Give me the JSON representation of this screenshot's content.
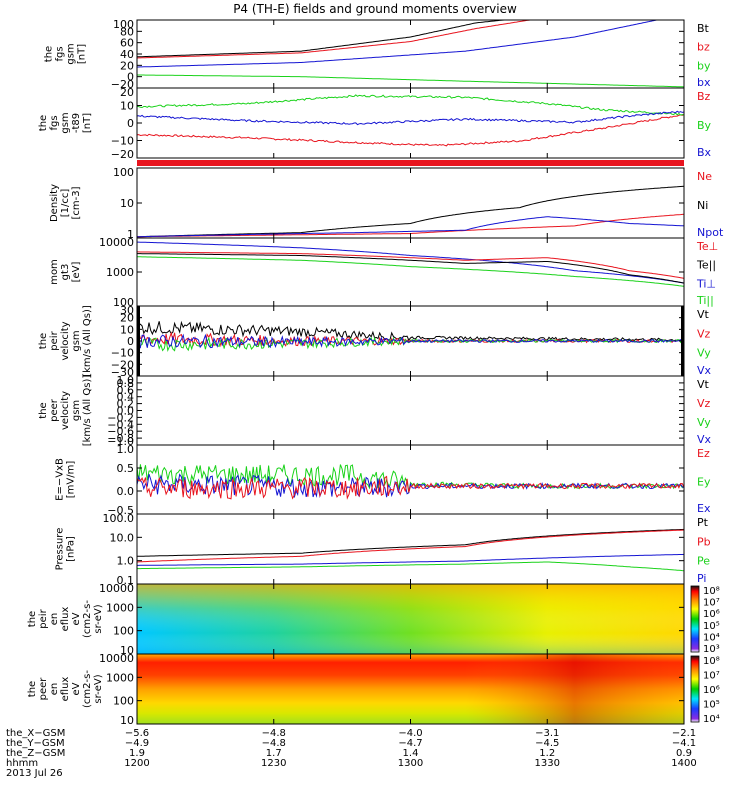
{
  "title": "P4 (TH-E) fields and ground moments overview",
  "colors": {
    "black": "#000000",
    "red": "#e8141e",
    "green": "#1ad21a",
    "blue": "#1414d2"
  },
  "chart_data": [
    {
      "type": "line",
      "ylabel": [
        "the",
        "fgs",
        "gsm",
        "[nT]"
      ],
      "yticks": [
        "100",
        "80",
        "60",
        "40",
        "20",
        "0",
        "−20"
      ],
      "ylim": [
        -20,
        100
      ],
      "legend": [
        {
          "name": "Bt",
          "color": "black"
        },
        {
          "name": "bz",
          "color": "red"
        },
        {
          "name": "by",
          "color": "green"
        },
        {
          "name": "bx",
          "color": "blue"
        }
      ],
      "series": [
        {
          "name": "Bt",
          "x": [
            0,
            0.3,
            0.5,
            0.62,
            0.72
          ],
          "y": [
            35,
            45,
            70,
            95,
            105
          ]
        },
        {
          "name": "bz",
          "x": [
            0,
            0.3,
            0.5,
            0.62,
            0.75
          ],
          "y": [
            33,
            42,
            62,
            85,
            105
          ]
        },
        {
          "name": "by",
          "x": [
            0,
            0.3,
            0.6,
            1
          ],
          "y": [
            3,
            0,
            -8,
            -18
          ]
        },
        {
          "name": "bx",
          "x": [
            0,
            0.3,
            0.6,
            0.8,
            1
          ],
          "y": [
            17,
            25,
            45,
            70,
            110
          ]
        }
      ]
    },
    {
      "type": "line",
      "ylabel": [
        "the",
        "fgs",
        "gsm",
        "-t89",
        "[nT]"
      ],
      "yticks": [
        "20",
        "10",
        "0",
        "−10",
        "−20"
      ],
      "ylim": [
        -25,
        20
      ],
      "legend": [
        {
          "name": "Bz",
          "color": "red"
        },
        {
          "name": "By",
          "color": "green"
        },
        {
          "name": "Bx",
          "color": "blue"
        }
      ],
      "series": [
        {
          "name": "Bz",
          "x": [
            0,
            0.2,
            0.4,
            0.55,
            0.7,
            0.85,
            1
          ],
          "y": [
            -10,
            -12,
            -15,
            -17,
            -14,
            -6,
            3
          ]
        },
        {
          "name": "By",
          "x": [
            0,
            0.2,
            0.4,
            0.6,
            0.75,
            0.85,
            1
          ],
          "y": [
            8,
            10,
            15,
            14,
            10,
            6,
            3
          ]
        },
        {
          "name": "Bx",
          "x": [
            0,
            0.2,
            0.4,
            0.6,
            0.8,
            0.9,
            1
          ],
          "y": [
            2,
            -1,
            -3,
            0,
            -2,
            2,
            5
          ]
        }
      ]
    },
    {
      "type": "line",
      "ylabel": [
        "Density",
        "[1/cc]",
        "[cm-3]"
      ],
      "yticks": [
        "100",
        "10",
        "1"
      ],
      "yscale": "log",
      "ylim": [
        1,
        200
      ],
      "legend": [
        {
          "name": "Ne",
          "color": "red"
        },
        {
          "name": "Ni",
          "color": "black"
        },
        {
          "name": "Npot",
          "color": "blue"
        }
      ],
      "series": [
        {
          "name": "Ni",
          "x": [
            0,
            0.3,
            0.5,
            0.7,
            1
          ],
          "y": [
            1.1,
            1.5,
            3,
            10,
            50
          ]
        },
        {
          "name": "Ne",
          "x": [
            0,
            0.5,
            0.8,
            1
          ],
          "y": [
            1.1,
            1.4,
            2.5,
            6
          ]
        },
        {
          "name": "Npot",
          "x": [
            0,
            0.4,
            0.6,
            0.75,
            0.9,
            1
          ],
          "y": [
            1.1,
            1.5,
            1.8,
            5,
            3,
            2.5
          ]
        }
      ]
    },
    {
      "type": "line",
      "ylabel": [
        "mom",
        "gt3",
        "[eV]"
      ],
      "yticks": [
        "10000",
        "1000",
        "100"
      ],
      "yscale": "log",
      "ylim": [
        100,
        12000
      ],
      "legend": [
        {
          "name": "Te⊥",
          "color": "red"
        },
        {
          "name": "Te||",
          "color": "black"
        },
        {
          "name": "Ti⊥",
          "color": "blue"
        },
        {
          "name": "Ti||",
          "color": "green"
        }
      ],
      "series": [
        {
          "name": "Ti⊥",
          "x": [
            0,
            0.3,
            0.5,
            0.8,
            1
          ],
          "y": [
            9000,
            6000,
            3500,
            1200,
            500
          ]
        },
        {
          "name": "Te⊥",
          "x": [
            0,
            0.3,
            0.6,
            0.75,
            0.9,
            1
          ],
          "y": [
            4500,
            4000,
            2500,
            3000,
            1200,
            700
          ]
        },
        {
          "name": "Te||",
          "x": [
            0,
            0.3,
            0.6,
            0.75,
            0.9,
            1
          ],
          "y": [
            4000,
            3500,
            2000,
            2300,
            900,
            500
          ]
        },
        {
          "name": "Ti||",
          "x": [
            0,
            0.3,
            0.5,
            0.8,
            1
          ],
          "y": [
            3200,
            2500,
            1600,
            800,
            400
          ]
        }
      ]
    },
    {
      "type": "line",
      "ylabel": [
        "the",
        "peir",
        "velocity",
        "gsm",
        "[km/s (All Qs)]"
      ],
      "yticks": [
        "30",
        "20",
        "10",
        "0",
        "−10",
        "−20",
        "−30"
      ],
      "ylim": [
        -30,
        30
      ],
      "legend": [
        {
          "name": "Vt",
          "color": "black"
        },
        {
          "name": "Vz",
          "color": "red"
        },
        {
          "name": "Vy",
          "color": "green"
        },
        {
          "name": "Vx",
          "color": "blue"
        }
      ],
      "series": [
        {
          "name": "Vt",
          "x": [
            0,
            0.3,
            0.5,
            1
          ],
          "y": [
            12,
            8,
            3,
            1
          ]
        },
        {
          "name": "Vz",
          "x": [
            0,
            0.3,
            0.5,
            1
          ],
          "y": [
            2,
            0,
            0,
            0
          ]
        },
        {
          "name": "Vy",
          "x": [
            0,
            0.3,
            0.5,
            1
          ],
          "y": [
            -3,
            -2,
            0,
            0
          ]
        },
        {
          "name": "Vx",
          "x": [
            0,
            0.3,
            0.5,
            1
          ],
          "y": [
            0,
            -1,
            0,
            0
          ]
        }
      ]
    },
    {
      "type": "line",
      "ylabel": [
        "the",
        "peer",
        "velocity",
        "gsm",
        "[km/s (All Qs)]"
      ],
      "yticks": [
        "1.0",
        "0.8",
        "0.6",
        "0.4",
        "0.2",
        "0.0",
        "−0.2",
        "−0.4",
        "−0.6",
        "−0.8",
        "−1.0"
      ],
      "ylim": [
        -1,
        1
      ],
      "legend": [
        {
          "name": "Vt",
          "color": "black"
        },
        {
          "name": "Vz",
          "color": "red"
        },
        {
          "name": "Vy",
          "color": "green"
        },
        {
          "name": "Vx",
          "color": "blue"
        }
      ],
      "series": []
    },
    {
      "type": "line",
      "ylabel": [
        "E=−VxB",
        "[mV/m]"
      ],
      "yticks": [
        "1.0",
        "0.5",
        "0.0",
        "−0.5"
      ],
      "ylim": [
        -0.6,
        1
      ],
      "legend": [
        {
          "name": "Ez",
          "color": "red"
        },
        {
          "name": "Ey",
          "color": "green"
        },
        {
          "name": "Ex",
          "color": "blue"
        }
      ],
      "series": [
        {
          "name": "Ey",
          "x": [
            0,
            0.2,
            0.4,
            0.5,
            0.7,
            1
          ],
          "y": [
            0.35,
            0.3,
            0.3,
            0.1,
            0.05,
            0.05
          ]
        },
        {
          "name": "Ex",
          "x": [
            0,
            0.2,
            0.4,
            0.5,
            0.7,
            1
          ],
          "y": [
            0.1,
            0.05,
            0,
            0.05,
            0.05,
            0.05
          ]
        },
        {
          "name": "Ez",
          "x": [
            0,
            0.2,
            0.4,
            0.5,
            0.7,
            1
          ],
          "y": [
            0,
            0,
            0,
            0.05,
            0.05,
            0.05
          ]
        }
      ]
    },
    {
      "type": "line",
      "ylabel": [
        "Pressure",
        "[nPa]"
      ],
      "yticks": [
        "100.0",
        "10.0",
        "1.0",
        "0.1"
      ],
      "yscale": "log",
      "ylim": [
        0.1,
        150
      ],
      "legend": [
        {
          "name": "Pt",
          "color": "black"
        },
        {
          "name": "Pb",
          "color": "red"
        },
        {
          "name": "Pe",
          "color": "green"
        },
        {
          "name": "Pi",
          "color": "blue"
        }
      ],
      "series": [
        {
          "name": "Pt",
          "x": [
            0,
            0.3,
            0.6,
            1
          ],
          "y": [
            1.8,
            2.5,
            6,
            30
          ]
        },
        {
          "name": "Pb",
          "x": [
            0,
            0.3,
            0.6,
            1
          ],
          "y": [
            1.0,
            1.8,
            5,
            28
          ]
        },
        {
          "name": "Pi",
          "x": [
            0,
            0.3,
            0.6,
            1
          ],
          "y": [
            0.7,
            0.8,
            1.1,
            2.2
          ]
        },
        {
          "name": "Pe",
          "x": [
            0,
            0.3,
            0.6,
            0.75,
            0.9,
            1
          ],
          "y": [
            0.5,
            0.6,
            0.8,
            1.0,
            0.6,
            0.4
          ]
        }
      ]
    },
    {
      "type": "heatmap",
      "ylabel": [
        "the",
        "peir",
        "en",
        "eflux",
        "eV",
        "(cm2-s-",
        "sr-eV)"
      ],
      "yticks": [
        "10000",
        "1000",
        "100",
        "10"
      ],
      "yscale": "log",
      "colorbar_ticks": [
        "10⁸",
        "10⁷",
        "10⁶",
        "10⁵",
        "10⁴",
        "10³"
      ],
      "colormap": "rainbow"
    },
    {
      "type": "heatmap",
      "ylabel": [
        "the",
        "peer",
        "en",
        "eflux",
        "eV",
        "(cm2-s-",
        "sr-eV)"
      ],
      "yticks": [
        "10000",
        "1000",
        "100",
        "10"
      ],
      "yscale": "log",
      "colorbar_ticks": [
        "10⁸",
        "10⁷",
        "10⁶",
        "10⁵",
        "10⁴"
      ],
      "colormap": "rainbow"
    }
  ],
  "xaxis": {
    "rows": [
      {
        "label": "the_X−GSM",
        "values": [
          "−5.6",
          "−4.8",
          "−4.0",
          "−3.1",
          "−2.1"
        ]
      },
      {
        "label": "the_Y−GSM",
        "values": [
          "−4.9",
          "−4.8",
          "−4.7",
          "−4.5",
          "−4.1"
        ]
      },
      {
        "label": "the_Z−GSM",
        "values": [
          "1.9",
          "1.7",
          "1.4",
          "1.2",
          "0.9"
        ]
      },
      {
        "label": "hhmm",
        "values": [
          "1200",
          "1230",
          "1300",
          "1330",
          "1400"
        ]
      }
    ],
    "date": "2013 Jul 26"
  }
}
